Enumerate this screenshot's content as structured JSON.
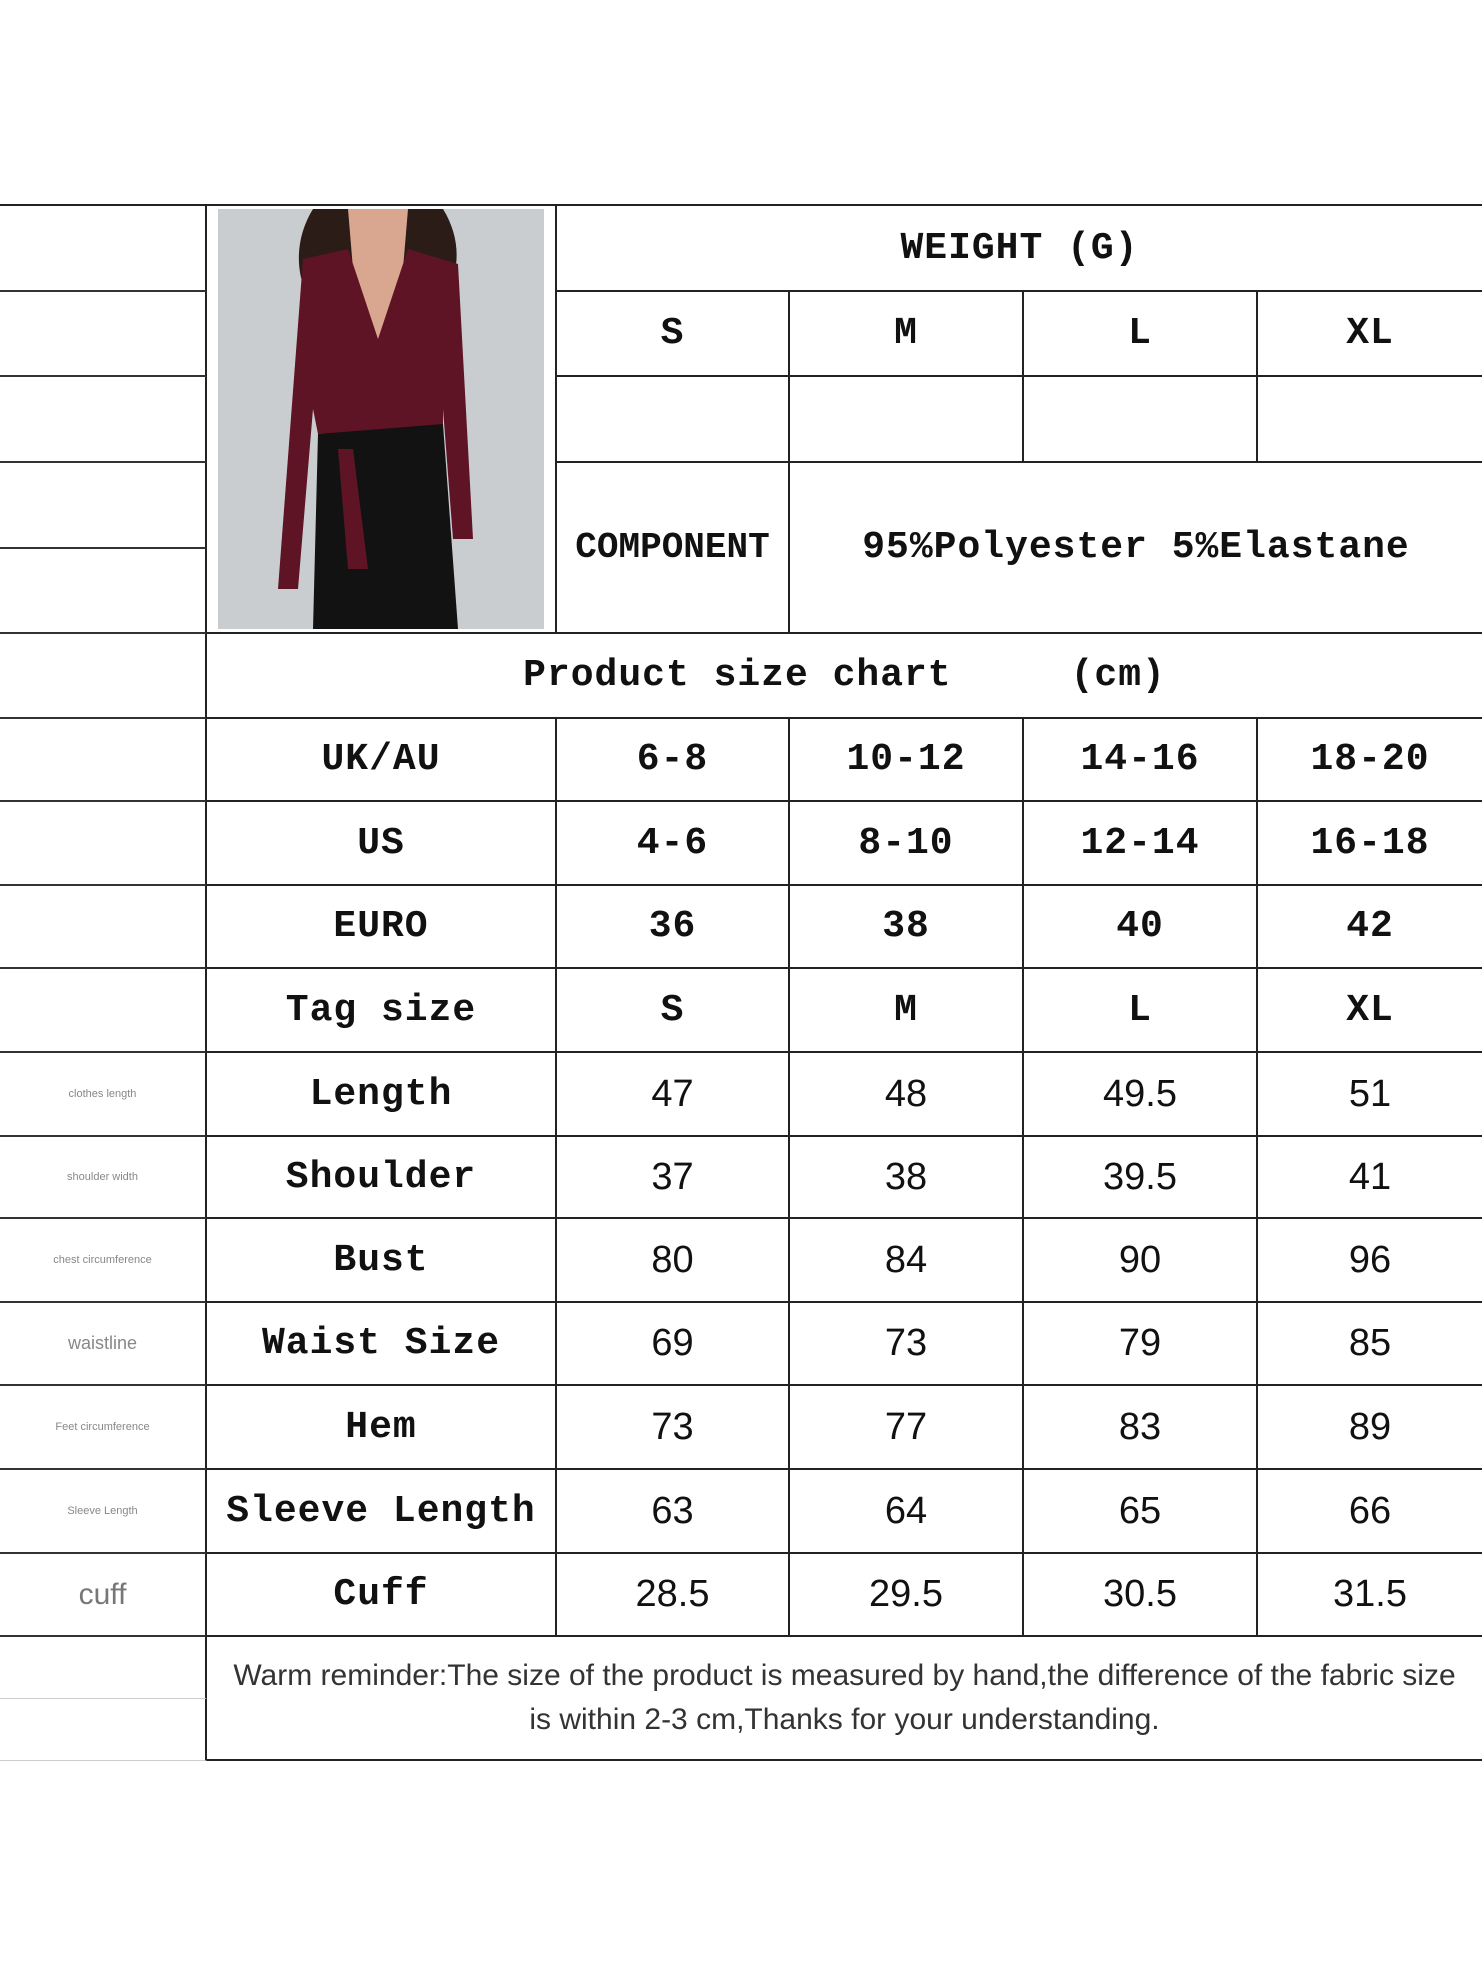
{
  "weight": {
    "title": "WEIGHT (G)",
    "sizes": [
      "S",
      "M",
      "L",
      "XL"
    ],
    "values": [
      "",
      "",
      "",
      ""
    ]
  },
  "component": {
    "label": "COMPONENT",
    "value": "95%Polyester 5%Elastane"
  },
  "chart": {
    "title": "Product size chart     (cm)",
    "rows": [
      {
        "side": "",
        "name": "UK/AU",
        "values": [
          "6-8",
          "10-12",
          "14-16",
          "18-20"
        ],
        "kind": "lbl"
      },
      {
        "side": "",
        "name": "US",
        "values": [
          "4-6",
          "8-10",
          "12-14",
          "16-18"
        ],
        "kind": "lbl"
      },
      {
        "side": "",
        "name": "EURO",
        "values": [
          "36",
          "38",
          "40",
          "42"
        ],
        "kind": "lbl"
      },
      {
        "side": "",
        "name": "Tag size",
        "values": [
          "S",
          "M",
          "L",
          "XL"
        ],
        "kind": "lbl"
      },
      {
        "side": "clothes length",
        "name": "Length",
        "values": [
          "47",
          "48",
          "49.5",
          "51"
        ],
        "kind": "val"
      },
      {
        "side": "shoulder width",
        "name": "Shoulder",
        "values": [
          "37",
          "38",
          "39.5",
          "41"
        ],
        "kind": "val"
      },
      {
        "side": "chest circumference",
        "name": "Bust",
        "values": [
          "80",
          "84",
          "90",
          "96"
        ],
        "kind": "val"
      },
      {
        "side": "waistline",
        "name": "Waist Size",
        "values": [
          "69",
          "73",
          "79",
          "85"
        ],
        "kind": "val"
      },
      {
        "side": "Feet circumference",
        "name": "Hem",
        "values": [
          "73",
          "77",
          "83",
          "89"
        ],
        "kind": "val"
      },
      {
        "side": "Sleeve Length",
        "name": "Sleeve Length",
        "values": [
          "63",
          "64",
          "65",
          "66"
        ],
        "kind": "val"
      },
      {
        "side": "cuff",
        "name": "Cuff",
        "values": [
          "28.5",
          "29.5",
          "30.5",
          "31.5"
        ],
        "kind": "val"
      }
    ]
  },
  "reminder": "Warm reminder:The size of the product is measured by hand,the difference of the fabric size is within 2-3 cm,Thanks for your understanding.",
  "colors": {
    "garment": "#5e1424",
    "background": "#c9cdd0",
    "pants": "#121212"
  }
}
